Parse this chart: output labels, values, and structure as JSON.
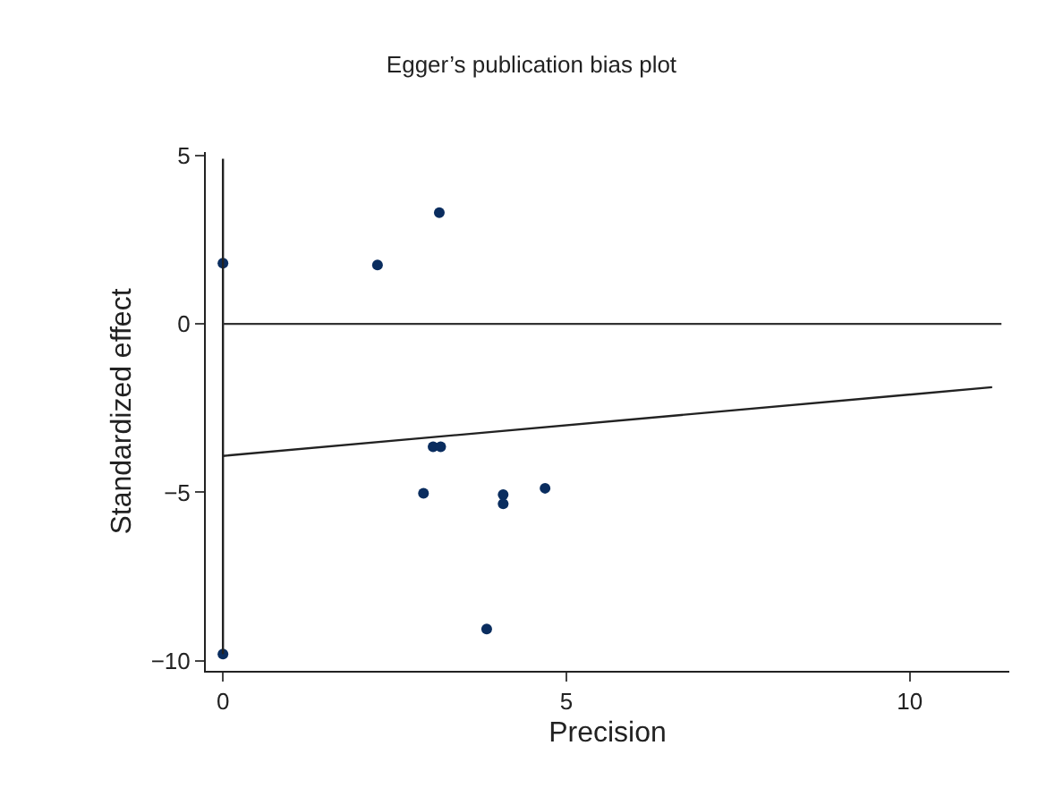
{
  "chart_data": {
    "type": "scatter",
    "title": "Egger’s publication bias plot",
    "xlabel": "Precision",
    "ylabel": "Standardized effect",
    "xlim": [
      -0.25,
      11.45
    ],
    "ylim": [
      -10.3,
      5.1
    ],
    "xticks": [
      0,
      5,
      10
    ],
    "yticks": [
      {
        "value": -10,
        "label": "−10"
      },
      {
        "value": -5,
        "label": "−5"
      },
      0,
      5
    ],
    "marker": "circle",
    "ref_lines": [
      {
        "axis": "y",
        "value": 0,
        "color": "#333333"
      }
    ],
    "series": [
      {
        "color": "#0a2d5f",
        "x": [
          0,
          2.25,
          3.15,
          3.06,
          3.17,
          2.92,
          4.08,
          4.08,
          4.69,
          3.84,
          0
        ],
        "values": [
          1.8,
          1.75,
          3.3,
          -3.65,
          -3.65,
          -5.03,
          -5.07,
          -5.34,
          -4.88,
          -9.06,
          -9.8
        ]
      },
      {
        "type": "line",
        "marker": "none",
        "color": "#222222",
        "x": [
          0,
          11.2
        ],
        "values": [
          -3.92,
          -1.88
        ]
      },
      {
        "type": "line",
        "marker": "none",
        "color": "#222222",
        "x": [
          0,
          0
        ],
        "values": [
          -9.8,
          4.9
        ]
      }
    ]
  }
}
